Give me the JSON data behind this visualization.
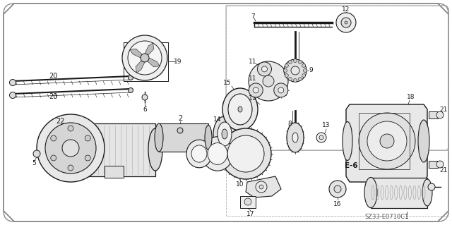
{
  "diagram_code": "SZ33-E0710C",
  "label_e6": "E-6",
  "bg": "#ffffff",
  "lc": "#1a1a1a",
  "gc": "#555555",
  "figsize": [
    6.4,
    3.19
  ],
  "dpi": 100
}
